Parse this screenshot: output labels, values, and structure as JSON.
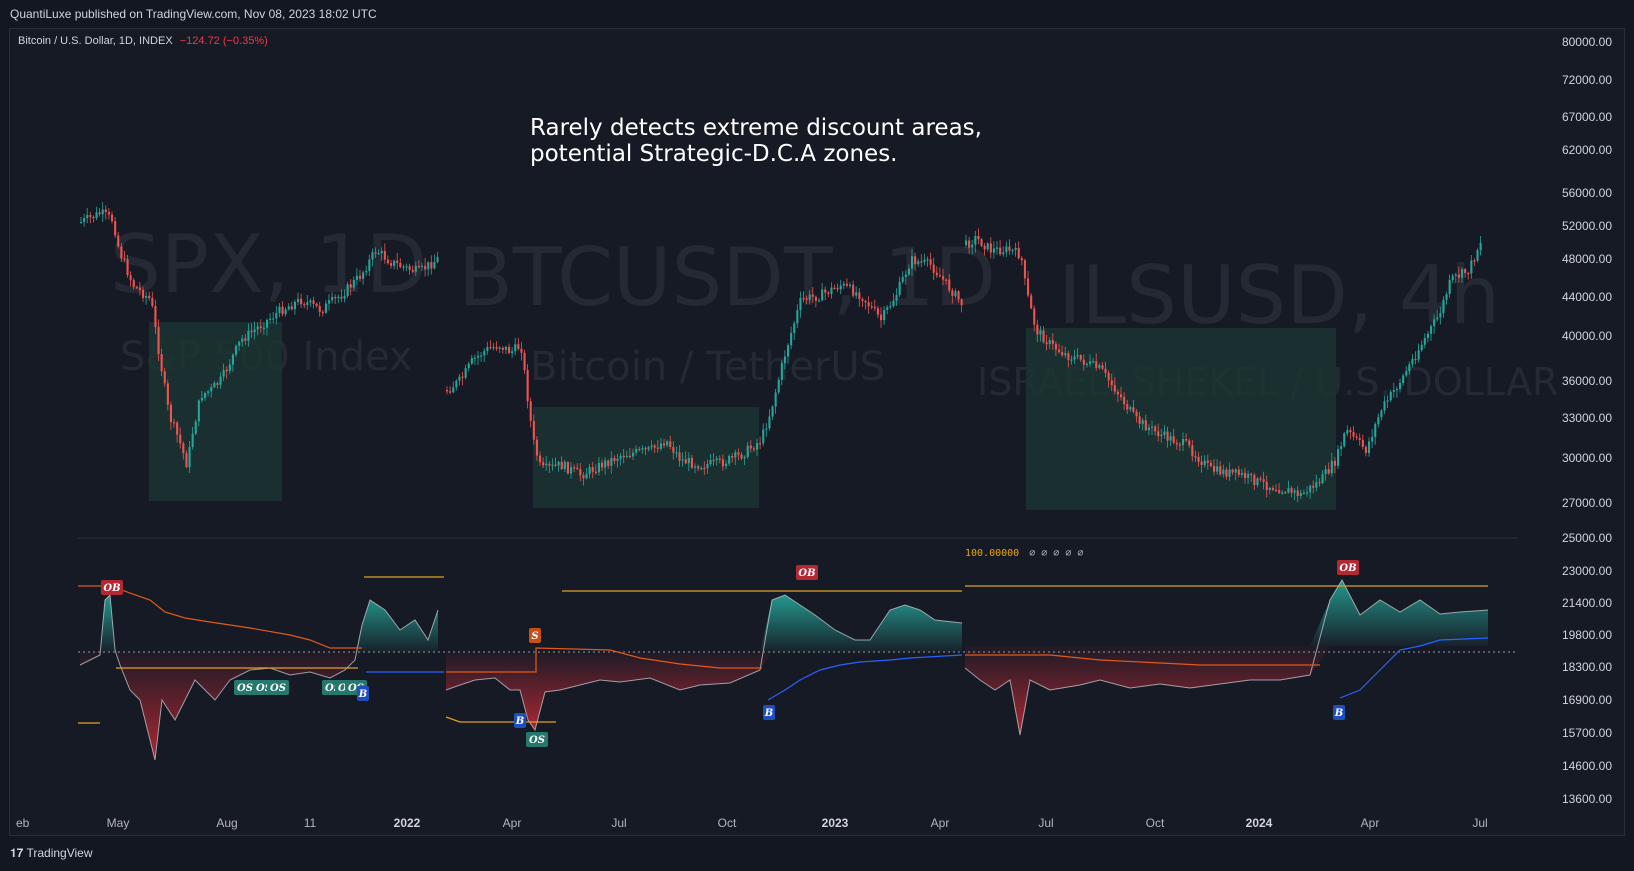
{
  "header": {
    "publisher_text": "QuantiLuxe published on TradingView.com, Nov 08, 2023 18:02 UTC"
  },
  "symbol": {
    "name": "Bitcoin / U.S. Dollar, 1D, INDEX",
    "change": "−124.72 (−0.35%)"
  },
  "annotation": {
    "line1": "Rarely detects extreme discount areas,",
    "line2": "potential Strategic-D.C.A zones."
  },
  "watermarks": [
    {
      "title": "SPX, 1D",
      "subtitle": "S&P 500 Index"
    },
    {
      "title": "BTCUSDT, 1D",
      "subtitle": "Bitcoin / TetherUS"
    },
    {
      "title": "ILSUSD, 4h",
      "subtitle": "ISRAELI SHEKEL / U.S. DOLLAR"
    }
  ],
  "indicator": {
    "level_label": "100.00000",
    "zeros": "∅ ∅ ∅ ∅ ∅"
  },
  "signals": [
    {
      "text": "OB",
      "kind": "ob"
    },
    {
      "text": "OS",
      "kind": "os"
    },
    {
      "text": "OS",
      "kind": "os"
    },
    {
      "text": "OS",
      "kind": "os"
    },
    {
      "text": "OS",
      "kind": "os"
    },
    {
      "text": "OS",
      "kind": "os"
    },
    {
      "text": "OS",
      "kind": "os"
    },
    {
      "text": "B",
      "kind": "b"
    },
    {
      "text": "S",
      "kind": "s"
    },
    {
      "text": "B",
      "kind": "b"
    },
    {
      "text": "OS",
      "kind": "os"
    },
    {
      "text": "OB",
      "kind": "ob"
    },
    {
      "text": "B",
      "kind": "b"
    },
    {
      "text": "OB",
      "kind": "ob"
    },
    {
      "text": "B",
      "kind": "b"
    }
  ],
  "price_axis": [
    "80000.00",
    "72000.00",
    "67000.00",
    "62000.00",
    "56000.00",
    "52000.00",
    "48000.00",
    "44000.00",
    "40000.00",
    "36000.00",
    "33000.00",
    "30000.00",
    "27000.00",
    "25000.00",
    "23000.00",
    "21400.00",
    "19800.00",
    "18300.00",
    "16900.00",
    "15700.00",
    "14600.00",
    "13600.00"
  ],
  "time_axis": [
    {
      "label": "eb",
      "bold": false
    },
    {
      "label": "May",
      "bold": false
    },
    {
      "label": "Aug",
      "bold": false
    },
    {
      "label": "11",
      "bold": false
    },
    {
      "label": "2022",
      "bold": true
    },
    {
      "label": "Apr",
      "bold": false
    },
    {
      "label": "Jul",
      "bold": false
    },
    {
      "label": "Oct",
      "bold": false
    },
    {
      "label": "2023",
      "bold": true
    },
    {
      "label": "Apr",
      "bold": false
    },
    {
      "label": "Jul",
      "bold": false
    },
    {
      "label": "Oct",
      "bold": false
    },
    {
      "label": "2024",
      "bold": true
    },
    {
      "label": "Apr",
      "bold": false
    },
    {
      "label": "Jul",
      "bold": false
    }
  ],
  "footer": {
    "brand": "TradingView"
  },
  "colors": {
    "background": "#131722",
    "bull": "#26a69a",
    "bear": "#ef5350",
    "zone": "#1e3a3a",
    "ob_line": "#e0a028",
    "os_line": "#e05a1a",
    "b_line": "#2962ff",
    "osc_pos": "#26a69a",
    "osc_neg": "#b22833"
  }
}
